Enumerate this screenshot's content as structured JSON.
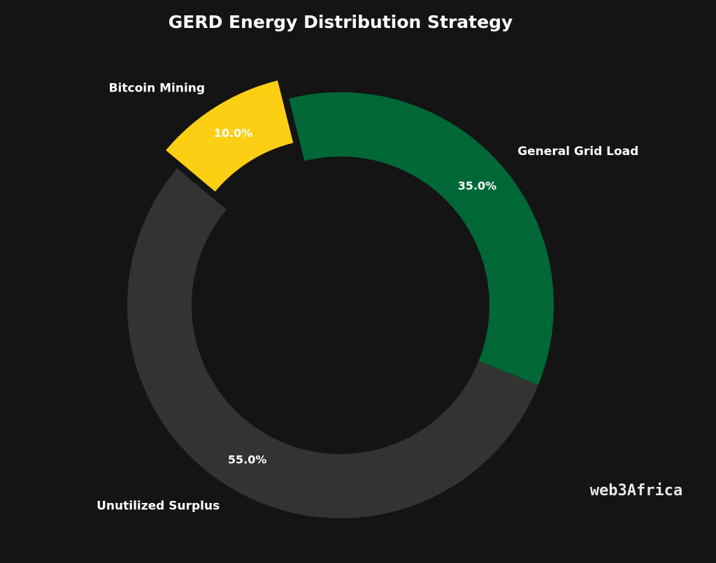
{
  "chart_data": {
    "type": "donut",
    "title": "GERD Energy Distribution Strategy",
    "categories": [
      "General Grid Load",
      "Unutilized Surplus",
      "Bitcoin Mining"
    ],
    "values": [
      35,
      55,
      10
    ],
    "value_labels": [
      "35.0%",
      "55.0%",
      "10.0%"
    ],
    "colors": [
      "#006837",
      "#333333",
      "#fccf14"
    ],
    "explode": [
      0,
      0,
      0.1
    ],
    "watermark": "web3Africa"
  }
}
